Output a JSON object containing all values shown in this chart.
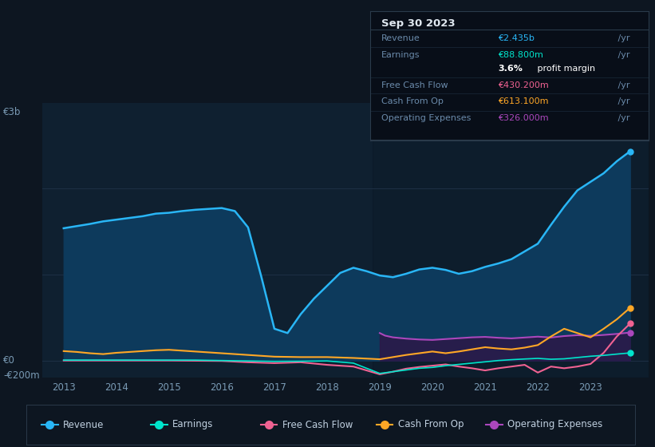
{
  "bg_color": "#0d1621",
  "chart_bg_color": "#0f2030",
  "chart_bg_right": "#141e2e",
  "ylabel_top": "€3b",
  "ylabel_zero": "€0",
  "ylabel_bottom": "-€200m",
  "ylim": [
    -200,
    3000
  ],
  "xlim_left": 2012.6,
  "xlim_right": 2024.1,
  "x_ticks": [
    2013,
    2014,
    2015,
    2016,
    2017,
    2018,
    2019,
    2020,
    2021,
    2022,
    2023
  ],
  "colors": {
    "revenue": "#29b6f6",
    "earnings": "#00e5cc",
    "free_cash_flow": "#f06292",
    "cash_from_op": "#ffa726",
    "operating_expenses": "#ab47bc"
  },
  "revenue_fill_color": "#0d3a5c",
  "opex_fill_color": "#2a1a4a",
  "info_box": {
    "date": "Sep 30 2023",
    "rows": [
      {
        "label": "Revenue",
        "val": "€2.435b",
        "val_color": "#29b6f6",
        "suffix": " /yr"
      },
      {
        "label": "Earnings",
        "val": "€88.800m",
        "val_color": "#00e5cc",
        "suffix": " /yr"
      },
      {
        "label": "",
        "val": "3.6% profit margin",
        "val_color": "#ffffff",
        "suffix": "",
        "bold_prefix": "3.6%"
      },
      {
        "label": "Free Cash Flow",
        "val": "€430.200m",
        "val_color": "#f06292",
        "suffix": " /yr"
      },
      {
        "label": "Cash From Op",
        "val": "€613.100m",
        "val_color": "#ffa726",
        "suffix": " /yr"
      },
      {
        "label": "Operating Expenses",
        "val": "€326.000m",
        "val_color": "#ab47bc",
        "suffix": " /yr"
      }
    ]
  },
  "legend": [
    {
      "label": "Revenue",
      "color": "#29b6f6"
    },
    {
      "label": "Earnings",
      "color": "#00e5cc"
    },
    {
      "label": "Free Cash Flow",
      "color": "#f06292"
    },
    {
      "label": "Cash From Op",
      "color": "#ffa726"
    },
    {
      "label": "Operating Expenses",
      "color": "#ab47bc"
    }
  ],
  "revenue_x": [
    2013.0,
    2013.25,
    2013.5,
    2013.75,
    2014.0,
    2014.25,
    2014.5,
    2014.75,
    2015.0,
    2015.25,
    2015.5,
    2015.75,
    2016.0,
    2016.25,
    2016.5,
    2016.75,
    2017.0,
    2017.25,
    2017.5,
    2017.75,
    2018.0,
    2018.25,
    2018.5,
    2018.75,
    2019.0,
    2019.25,
    2019.5,
    2019.75,
    2020.0,
    2020.25,
    2020.5,
    2020.75,
    2021.0,
    2021.25,
    2021.5,
    2021.75,
    2022.0,
    2022.25,
    2022.5,
    2022.75,
    2023.0,
    2023.25,
    2023.5,
    2023.75
  ],
  "revenue_y": [
    1540,
    1565,
    1590,
    1620,
    1640,
    1660,
    1680,
    1710,
    1720,
    1740,
    1755,
    1765,
    1775,
    1740,
    1550,
    980,
    370,
    320,
    540,
    720,
    870,
    1020,
    1080,
    1040,
    990,
    970,
    1010,
    1060,
    1080,
    1055,
    1010,
    1040,
    1090,
    1130,
    1180,
    1270,
    1360,
    1580,
    1790,
    1980,
    2080,
    2180,
    2320,
    2435
  ],
  "earnings_x": [
    2013.0,
    2013.5,
    2014.0,
    2014.5,
    2015.0,
    2015.5,
    2016.0,
    2016.5,
    2017.0,
    2017.5,
    2018.0,
    2018.5,
    2019.0,
    2019.25,
    2019.5,
    2019.75,
    2020.0,
    2020.25,
    2020.5,
    2020.75,
    2021.0,
    2021.25,
    2021.5,
    2021.75,
    2022.0,
    2022.25,
    2022.5,
    2022.75,
    2023.0,
    2023.25,
    2023.5,
    2023.75
  ],
  "earnings_y": [
    5,
    5,
    5,
    5,
    5,
    5,
    0,
    -5,
    -10,
    -8,
    -5,
    -30,
    -150,
    -130,
    -110,
    -90,
    -80,
    -60,
    -45,
    -30,
    -15,
    0,
    10,
    18,
    25,
    15,
    20,
    35,
    50,
    60,
    75,
    88.8
  ],
  "fcf_x": [
    2013.0,
    2014.0,
    2015.0,
    2016.0,
    2016.5,
    2017.0,
    2017.5,
    2018.0,
    2018.5,
    2019.0,
    2019.25,
    2019.5,
    2019.75,
    2020.0,
    2020.25,
    2020.5,
    2020.75,
    2021.0,
    2021.25,
    2021.5,
    2021.75,
    2022.0,
    2022.25,
    2022.5,
    2022.75,
    2023.0,
    2023.25,
    2023.5,
    2023.75
  ],
  "fcf_y": [
    0,
    0,
    0,
    -5,
    -20,
    -30,
    -20,
    -50,
    -70,
    -160,
    -130,
    -95,
    -75,
    -60,
    -45,
    -70,
    -90,
    -115,
    -90,
    -70,
    -50,
    -140,
    -70,
    -90,
    -70,
    -40,
    90,
    280,
    430
  ],
  "cashop_x": [
    2013.0,
    2013.25,
    2013.5,
    2013.75,
    2014.0,
    2014.25,
    2014.5,
    2014.75,
    2015.0,
    2015.25,
    2015.5,
    2015.75,
    2016.0,
    2016.25,
    2016.5,
    2016.75,
    2017.0,
    2017.5,
    2018.0,
    2018.5,
    2019.0,
    2019.25,
    2019.5,
    2019.75,
    2020.0,
    2020.25,
    2020.5,
    2020.75,
    2021.0,
    2021.25,
    2021.5,
    2021.75,
    2022.0,
    2022.25,
    2022.5,
    2022.75,
    2023.0,
    2023.25,
    2023.5,
    2023.75
  ],
  "cashop_y": [
    110,
    100,
    85,
    75,
    90,
    100,
    110,
    120,
    125,
    115,
    105,
    95,
    85,
    75,
    65,
    55,
    45,
    40,
    40,
    30,
    15,
    40,
    65,
    85,
    105,
    85,
    105,
    130,
    155,
    140,
    130,
    150,
    180,
    280,
    370,
    320,
    270,
    370,
    480,
    613
  ],
  "opex_x": [
    2019.0,
    2019.1,
    2019.25,
    2019.5,
    2019.75,
    2020.0,
    2020.25,
    2020.5,
    2020.75,
    2021.0,
    2021.25,
    2021.5,
    2021.75,
    2022.0,
    2022.25,
    2022.5,
    2022.75,
    2023.0,
    2023.25,
    2023.5,
    2023.75
  ],
  "opex_y": [
    320,
    290,
    270,
    255,
    245,
    240,
    250,
    260,
    270,
    275,
    265,
    258,
    268,
    278,
    268,
    285,
    295,
    288,
    298,
    310,
    326
  ]
}
